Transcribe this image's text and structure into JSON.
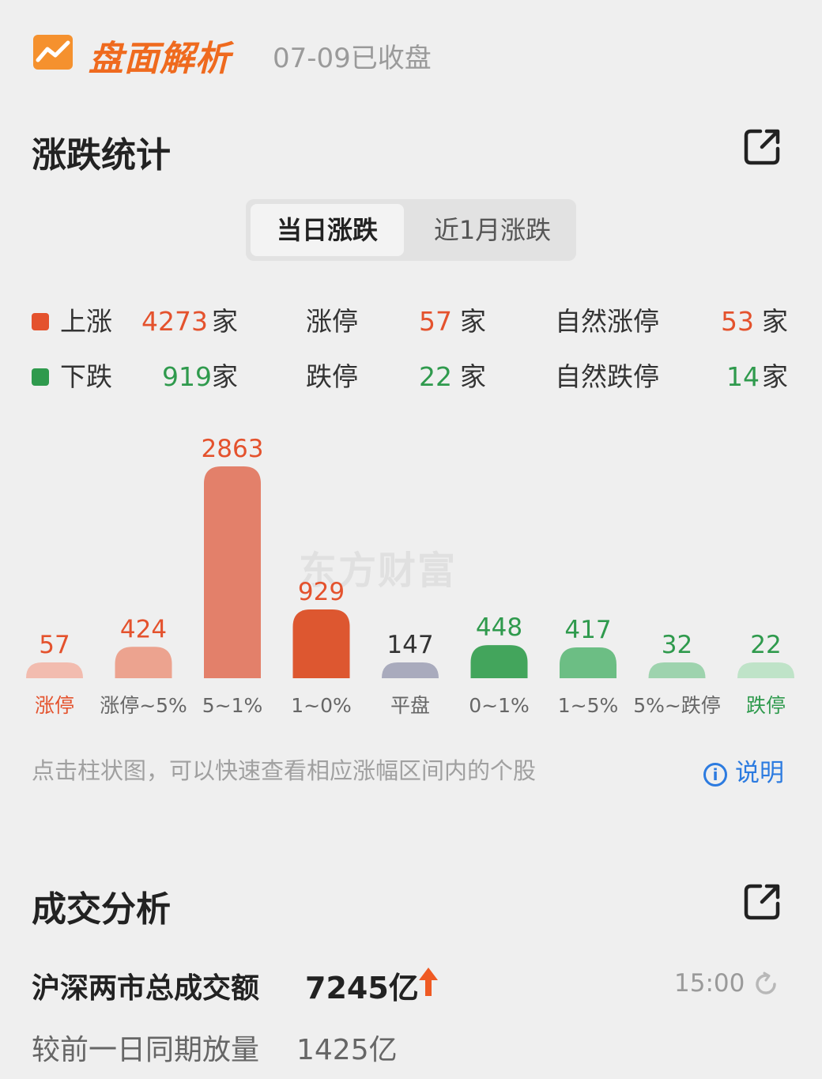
{
  "header": {
    "brand": "盘面解析",
    "date_status": "07-09已收盘",
    "logo_icon": "trend-chart-icon",
    "brand_color": "#ef6a1e"
  },
  "rise_fall": {
    "title": "涨跌统计",
    "external_icon": "external-link-icon",
    "tabs": [
      {
        "label": "当日涨跌",
        "selected": true
      },
      {
        "label": "近1月涨跌",
        "selected": false
      }
    ],
    "stats": {
      "up": {
        "label": "上涨",
        "value": "4273",
        "unit": "家"
      },
      "limit_up": {
        "label": "涨停",
        "value": "57",
        "unit": "家"
      },
      "natural_limit_up": {
        "label": "自然涨停",
        "value": "53",
        "unit": "家"
      },
      "down": {
        "label": "下跌",
        "value": "919",
        "unit": "家"
      },
      "limit_down": {
        "label": "跌停",
        "value": "22",
        "unit": "家"
      },
      "natural_limit_down": {
        "label": "自然跌停",
        "value": "14",
        "unit": "家"
      }
    },
    "watermark": "东方财富",
    "hint": "点击柱状图，可以快速查看相应涨幅区间内的个股",
    "explain_label": "说明",
    "colors": {
      "up": "#e4522d",
      "down": "#2f9a4d",
      "flat": "#9da0b3",
      "link": "#2c7be0"
    }
  },
  "chart_data": {
    "type": "bar",
    "categories": [
      "涨停",
      "涨停~5%",
      "5~1%",
      "1~0%",
      "平盘",
      "0~1%",
      "1~5%",
      "5%~跌停",
      "跌停"
    ],
    "values": [
      57,
      424,
      2863,
      929,
      147,
      448,
      417,
      32,
      22
    ],
    "bar_colors": [
      "#f2bcaf",
      "#eca38f",
      "#e3806a",
      "#dd5730",
      "#a9abbd",
      "#43a55c",
      "#6cbe84",
      "#9ed3ae",
      "#bfe3c8"
    ],
    "label_colors": [
      "#e4522d",
      "#e4522d",
      "#e4522d",
      "#e4522d",
      "#333333",
      "#2f9a4d",
      "#2f9a4d",
      "#2f9a4d",
      "#2f9a4d"
    ],
    "category_label_colors": [
      "#e4522d",
      "#666666",
      "#666666",
      "#666666",
      "#666666",
      "#666666",
      "#666666",
      "#666666",
      "#2f9a4d"
    ]
  },
  "turnover": {
    "title": "成交分析",
    "external_icon": "external-link-icon",
    "total_label": "沪深两市总成交额",
    "total_value": "7245亿",
    "trend_icon": "up-arrow-icon",
    "time": "15:00",
    "refresh_icon": "refresh-icon",
    "compare_label": "较前一日同期放量",
    "compare_value": "1425亿"
  }
}
